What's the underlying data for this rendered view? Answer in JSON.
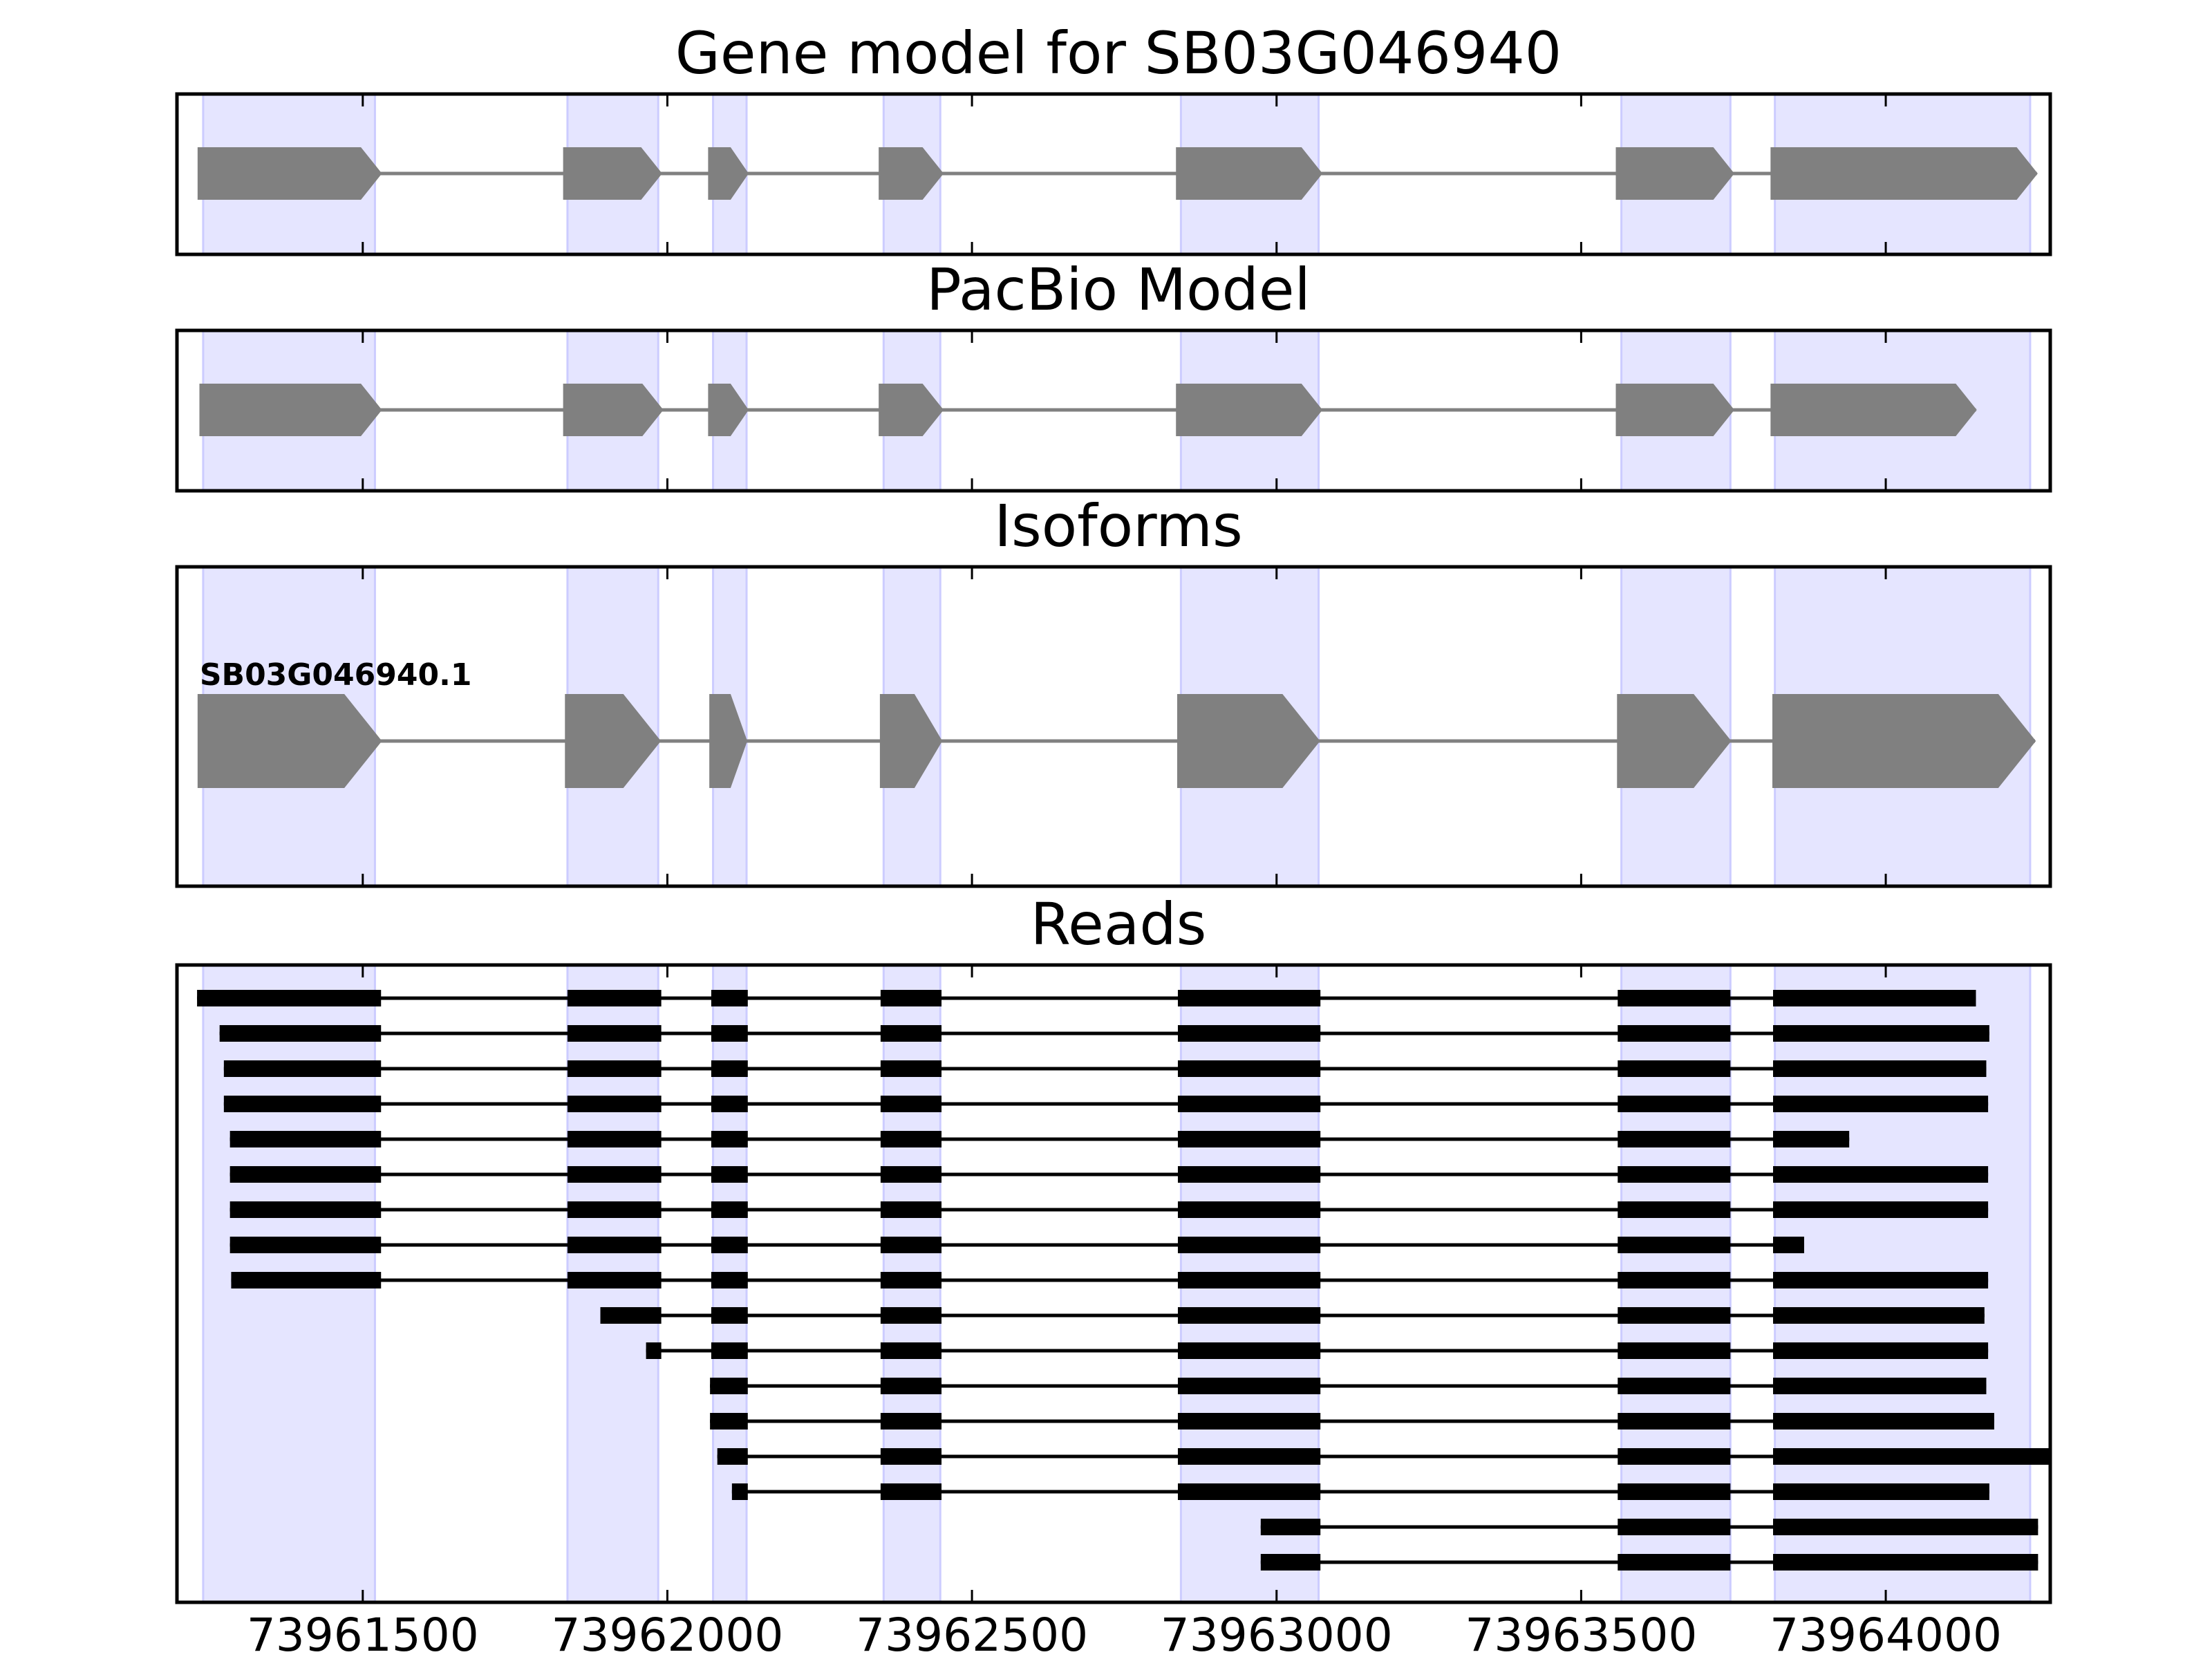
{
  "titles": {
    "gene_model": "Gene model for SB03G046940",
    "pacbio": "PacBio Model",
    "isoforms": "Isoforms",
    "reads": "Reads"
  },
  "colors": {
    "highlight": "#e5e5ff",
    "highlight_edge": "#ccccff",
    "feature": "#808080",
    "read": "#000000",
    "frame": "#000000"
  },
  "chart_data": {
    "type": "gene-structure",
    "xlim": [
      73961195,
      73964270
    ],
    "ticks": [
      73961500,
      73962000,
      73962500,
      73963000,
      73963500,
      73964000
    ],
    "tick_labels": [
      "73961500",
      "73962000",
      "73962500",
      "73963000",
      "73963500",
      "73964000"
    ],
    "highlight_regions": [
      [
        73961238,
        73961520
      ],
      [
        73961836,
        73961985
      ],
      [
        73962075,
        73962130
      ],
      [
        73962355,
        73962448
      ],
      [
        73962843,
        73963069
      ],
      [
        73963566,
        73963745
      ],
      [
        73963818,
        73964237
      ]
    ],
    "gene_model": {
      "exons": [
        [
          73961230,
          73961530
        ],
        [
          73961830,
          73961990
        ],
        [
          73962068,
          73962132
        ],
        [
          73962348,
          73962452
        ],
        [
          73962836,
          73963074
        ],
        [
          73963558,
          73963750
        ],
        [
          73963812,
          73964248
        ]
      ]
    },
    "pacbio_model": {
      "exons": [
        [
          73961233,
          73961530
        ],
        [
          73961830,
          73961992
        ],
        [
          73962068,
          73962132
        ],
        [
          73962348,
          73962452
        ],
        [
          73962836,
          73963074
        ],
        [
          73963558,
          73963750
        ],
        [
          73963812,
          73964148
        ]
      ]
    },
    "isoforms": [
      {
        "label": "SB03G046940.1",
        "exons": [
          [
            73961230,
            73961530
          ],
          [
            73961833,
            73961988
          ],
          [
            73962070,
            73962130
          ],
          [
            73962350,
            73962450
          ],
          [
            73962838,
            73963070
          ],
          [
            73963560,
            73963745
          ],
          [
            73963815,
            73964245
          ]
        ]
      }
    ],
    "reads": [
      [
        [
          73961228,
          73961530
        ],
        [
          73961836,
          73961990
        ],
        [
          73962072,
          73962132
        ],
        [
          73962350,
          73962450
        ],
        [
          73962838,
          73963072
        ],
        [
          73963560,
          73963745
        ],
        [
          73963815,
          73964148
        ]
      ],
      [
        [
          73961265,
          73961530
        ],
        [
          73961836,
          73961990
        ],
        [
          73962072,
          73962132
        ],
        [
          73962350,
          73962450
        ],
        [
          73962838,
          73963072
        ],
        [
          73963560,
          73963745
        ],
        [
          73963815,
          73964170
        ]
      ],
      [
        [
          73961272,
          73961530
        ],
        [
          73961836,
          73961990
        ],
        [
          73962072,
          73962132
        ],
        [
          73962350,
          73962450
        ],
        [
          73962838,
          73963072
        ],
        [
          73963560,
          73963745
        ],
        [
          73963815,
          73964165
        ]
      ],
      [
        [
          73961272,
          73961530
        ],
        [
          73961836,
          73961990
        ],
        [
          73962072,
          73962132
        ],
        [
          73962350,
          73962450
        ],
        [
          73962838,
          73963072
        ],
        [
          73963560,
          73963745
        ],
        [
          73963815,
          73964168
        ]
      ],
      [
        [
          73961282,
          73961530
        ],
        [
          73961836,
          73961990
        ],
        [
          73962072,
          73962132
        ],
        [
          73962350,
          73962450
        ],
        [
          73962838,
          73963072
        ],
        [
          73963560,
          73963745
        ],
        [
          73963815,
          73963940
        ]
      ],
      [
        [
          73961282,
          73961530
        ],
        [
          73961836,
          73961990
        ],
        [
          73962072,
          73962132
        ],
        [
          73962350,
          73962450
        ],
        [
          73962838,
          73963072
        ],
        [
          73963560,
          73963745
        ],
        [
          73963815,
          73964168
        ]
      ],
      [
        [
          73961282,
          73961530
        ],
        [
          73961836,
          73961990
        ],
        [
          73962072,
          73962132
        ],
        [
          73962350,
          73962450
        ],
        [
          73962838,
          73963072
        ],
        [
          73963560,
          73963745
        ],
        [
          73963815,
          73964168
        ]
      ],
      [
        [
          73961282,
          73961530
        ],
        [
          73961836,
          73961990
        ],
        [
          73962072,
          73962132
        ],
        [
          73962350,
          73962450
        ],
        [
          73962838,
          73963072
        ],
        [
          73963560,
          73963745
        ],
        [
          73963815,
          73963866
        ]
      ],
      [
        [
          73961284,
          73961530
        ],
        [
          73961836,
          73961990
        ],
        [
          73962072,
          73962132
        ],
        [
          73962350,
          73962450
        ],
        [
          73962838,
          73963072
        ],
        [
          73963560,
          73963745
        ],
        [
          73963815,
          73964168
        ]
      ],
      [
        [
          73961890,
          73961990
        ],
        [
          73962072,
          73962132
        ],
        [
          73962350,
          73962450
        ],
        [
          73962838,
          73963072
        ],
        [
          73963560,
          73963745
        ],
        [
          73963815,
          73964162
        ]
      ],
      [
        [
          73961965,
          73961990
        ],
        [
          73962072,
          73962132
        ],
        [
          73962350,
          73962450
        ],
        [
          73962838,
          73963072
        ],
        [
          73963560,
          73963745
        ],
        [
          73963815,
          73964168
        ]
      ],
      [
        [
          73962070,
          73962132
        ],
        [
          73962350,
          73962450
        ],
        [
          73962838,
          73963072
        ],
        [
          73963560,
          73963745
        ],
        [
          73963815,
          73964165
        ]
      ],
      [
        [
          73962070,
          73962132
        ],
        [
          73962350,
          73962450
        ],
        [
          73962838,
          73963072
        ],
        [
          73963560,
          73963745
        ],
        [
          73963815,
          73964178
        ]
      ],
      [
        [
          73962082,
          73962132
        ],
        [
          73962350,
          73962450
        ],
        [
          73962838,
          73963072
        ],
        [
          73963560,
          73963745
        ],
        [
          73963815,
          73964270
        ]
      ],
      [
        [
          73962106,
          73962132
        ],
        [
          73962350,
          73962450
        ],
        [
          73962838,
          73963072
        ],
        [
          73963560,
          73963745
        ],
        [
          73963815,
          73964170
        ]
      ],
      [
        [
          73962974,
          73963072
        ],
        [
          73963560,
          73963745
        ],
        [
          73963815,
          73964250
        ]
      ],
      [
        [
          73962974,
          73963072
        ],
        [
          73963560,
          73963745
        ],
        [
          73963815,
          73964250
        ]
      ]
    ]
  }
}
